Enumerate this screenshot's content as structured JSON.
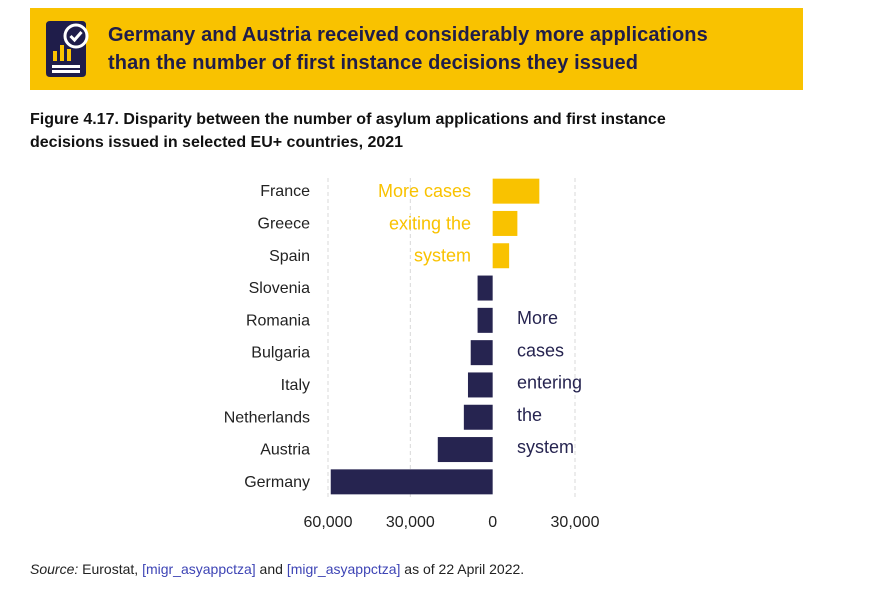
{
  "banner": {
    "icon": "document-chart-check-icon",
    "title_line1": "Germany and Austria received considerably more applications",
    "title_line2": "than the number of first instance decisions they issued"
  },
  "figure": {
    "caption_line1": "Figure 4.17. Disparity between the number of asylum applications and first instance",
    "caption_line2": "decisions issued in selected EU+ countries, 2021"
  },
  "source": {
    "label": "Source:",
    "text1": "Eurostat, ",
    "link1": "[migr_asyappctza]",
    "text2": " and ",
    "link2": "[migr_asyappctza]",
    "text3": " as of 22 April 2022."
  },
  "colors": {
    "positive": "#f9c200",
    "negative": "#262450",
    "grid": "#d9d9d9"
  },
  "chart_data": {
    "type": "bar",
    "orientation": "horizontal",
    "title": "Disparity between the number of asylum applications and first instance decisions issued in selected EU+ countries, 2021",
    "categories": [
      "France",
      "Greece",
      "Spain",
      "Slovenia",
      "Romania",
      "Bulgaria",
      "Italy",
      "Netherlands",
      "Austria",
      "Germany"
    ],
    "values": [
      17000,
      9000,
      6000,
      -5500,
      -5500,
      -8000,
      -9000,
      -10500,
      -20000,
      -59000
    ],
    "xlim": [
      -60000,
      30000
    ],
    "xticks": [
      -60000,
      -30000,
      0,
      30000
    ],
    "xtick_labels": [
      "60,000",
      "30,000",
      "0",
      "30,000"
    ],
    "grid": true,
    "annotations": [
      {
        "lines": [
          "More cases",
          "exiting the",
          "system"
        ],
        "color": "#f9c200"
      },
      {
        "lines": [
          "More",
          "cases",
          "entering",
          "the",
          "system"
        ],
        "color": "#262450"
      }
    ]
  }
}
